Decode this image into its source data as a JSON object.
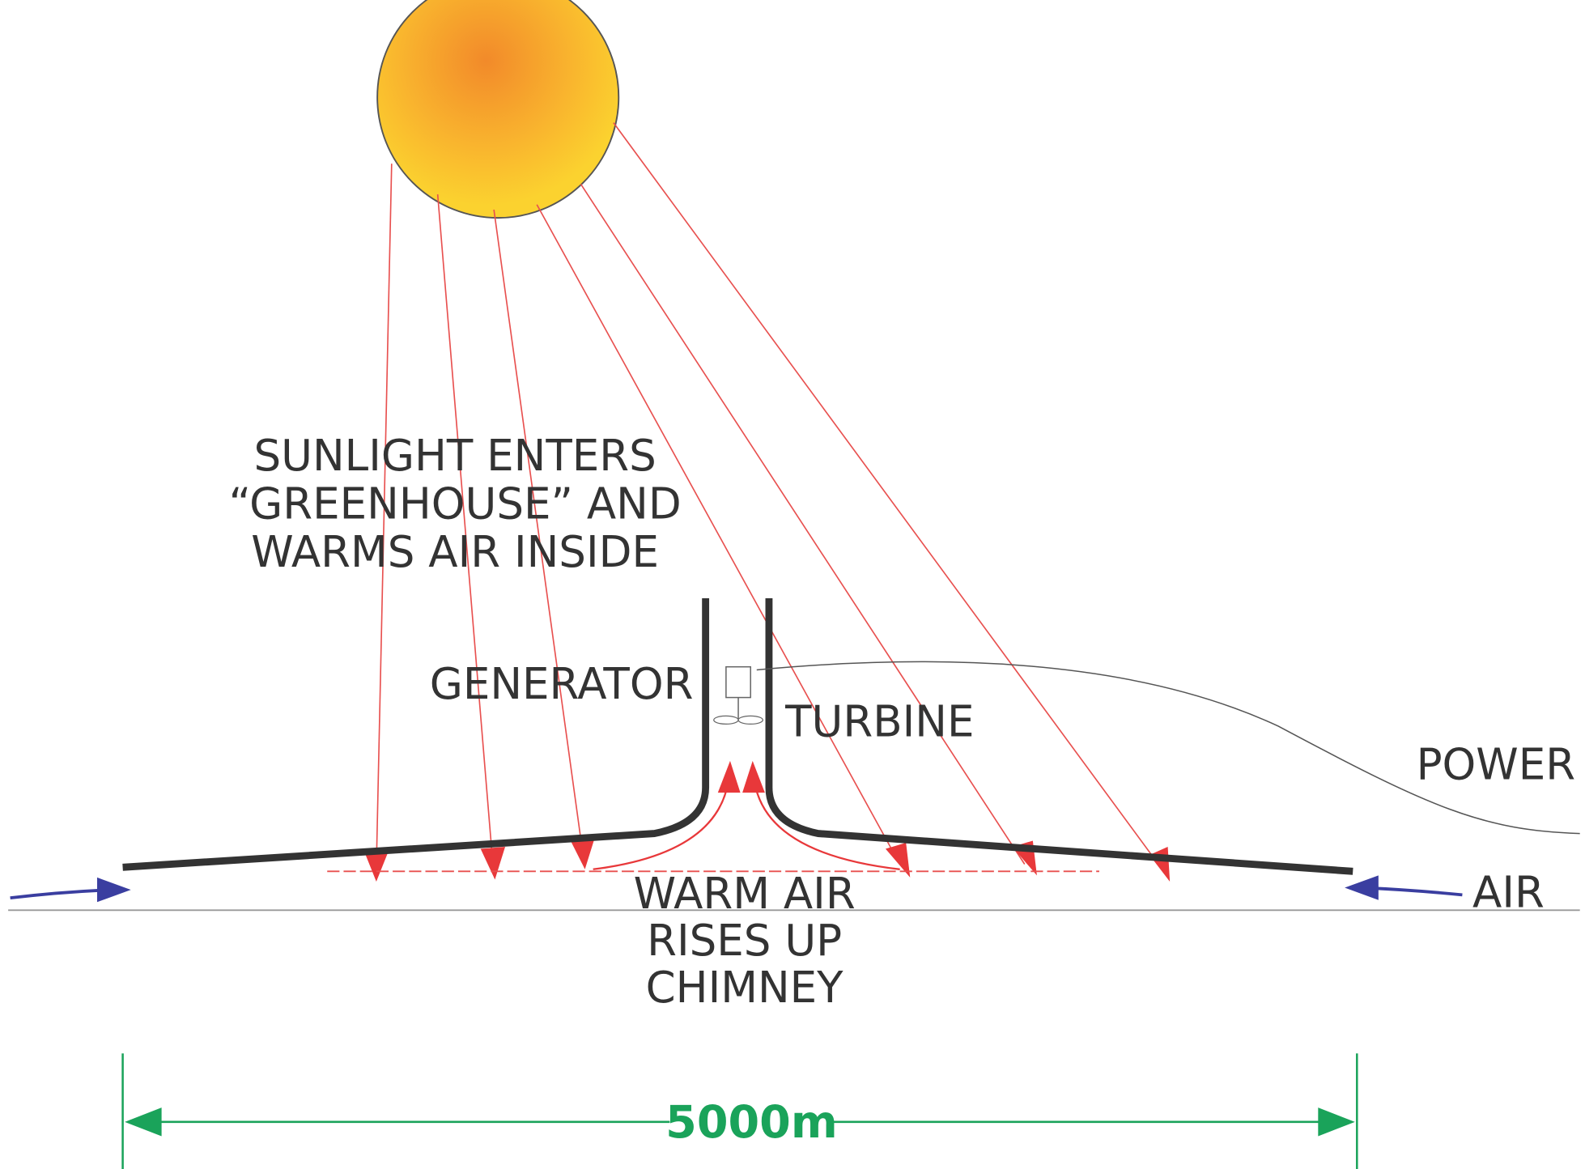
{
  "labels": {
    "sunlight": [
      "SUNLIGHT ENTERS",
      "“GREENHOUSE” AND",
      "WARMS AIR INSIDE"
    ],
    "generator": "GENERATOR",
    "turbine": "TURBINE",
    "power": "POWER",
    "air": "AIR",
    "warm_air": [
      "WARM AIR",
      "RISES UP",
      "CHIMNEY"
    ]
  },
  "dimension": "5000m"
}
